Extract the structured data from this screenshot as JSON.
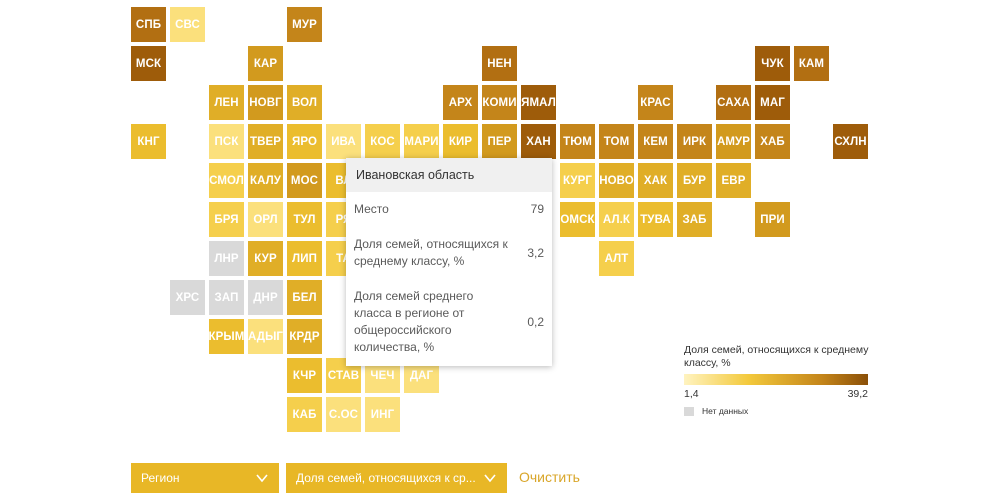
{
  "regions": [
    {
      "abbr": "СПБ",
      "bin": 7
    },
    {
      "abbr": "СВС",
      "bin": 1
    },
    {
      "abbr": "МУР",
      "bin": 6
    },
    {
      "abbr": "МСК",
      "bin": 8
    },
    {
      "abbr": "КАР",
      "bin": 5
    },
    {
      "abbr": "НЕН",
      "bin": 7
    },
    {
      "abbr": "ЧУК",
      "bin": 8
    },
    {
      "abbr": "КАМ",
      "bin": 7
    },
    {
      "abbr": "ЛЕН",
      "bin": 4
    },
    {
      "abbr": "НОВГ",
      "bin": 5
    },
    {
      "abbr": "ВОЛ",
      "bin": 4
    },
    {
      "abbr": "АРХ",
      "bin": 6
    },
    {
      "abbr": "КОМИ",
      "bin": 6
    },
    {
      "abbr": "ЯМАЛ",
      "bin": 8
    },
    {
      "abbr": "КРАС",
      "bin": 6
    },
    {
      "abbr": "САХА",
      "bin": 7
    },
    {
      "abbr": "МАГ",
      "bin": 8
    },
    {
      "abbr": "КНГ",
      "bin": 3
    },
    {
      "abbr": "ПСК",
      "bin": 1
    },
    {
      "abbr": "ТВЕР",
      "bin": 4
    },
    {
      "abbr": "ЯРО",
      "bin": 3
    },
    {
      "abbr": "ИВА",
      "bin": 1
    },
    {
      "abbr": "КОС",
      "bin": 2
    },
    {
      "abbr": "МАРИ",
      "bin": 2
    },
    {
      "abbr": "КИР",
      "bin": 3
    },
    {
      "abbr": "ПЕР",
      "bin": 5
    },
    {
      "abbr": "ХАН",
      "bin": 8
    },
    {
      "abbr": "ТЮМ",
      "bin": 6
    },
    {
      "abbr": "ТОМ",
      "bin": 6
    },
    {
      "abbr": "КЕМ",
      "bin": 6
    },
    {
      "abbr": "ИРК",
      "bin": 6
    },
    {
      "abbr": "АМУР",
      "bin": 5
    },
    {
      "abbr": "ХАБ",
      "bin": 6
    },
    {
      "abbr": "СХЛН",
      "bin": 8
    },
    {
      "abbr": "СМОЛ",
      "bin": 2
    },
    {
      "abbr": "КАЛУ",
      "bin": 4
    },
    {
      "abbr": "МОС",
      "bin": 5
    },
    {
      "abbr": "ВЛ",
      "bin": 3
    },
    {
      "abbr": "КУРГ",
      "bin": 2
    },
    {
      "abbr": "НОВО",
      "bin": 4
    },
    {
      "abbr": "ХАК",
      "bin": 4
    },
    {
      "abbr": "БУР",
      "bin": 4
    },
    {
      "abbr": "ЕВР",
      "bin": 4
    },
    {
      "abbr": "БРЯ",
      "bin": 2
    },
    {
      "abbr": "ОРЛ",
      "bin": 1
    },
    {
      "abbr": "ТУЛ",
      "bin": 3
    },
    {
      "abbr": "РЯ",
      "bin": 2
    },
    {
      "abbr": "ОМСК",
      "bin": 3
    },
    {
      "abbr": "АЛ.К",
      "bin": 2
    },
    {
      "abbr": "ТУВА",
      "bin": 3
    },
    {
      "abbr": "ЗАБ",
      "bin": 4
    },
    {
      "abbr": "ПРИ",
      "bin": 5
    },
    {
      "abbr": "ЛНР",
      "bin": 0
    },
    {
      "abbr": "КУР",
      "bin": 4
    },
    {
      "abbr": "ЛИП",
      "bin": 3
    },
    {
      "abbr": "ТА",
      "bin": 2
    },
    {
      "abbr": "АЛТ",
      "bin": 2
    },
    {
      "abbr": "ХРС",
      "bin": 0
    },
    {
      "abbr": "ЗАП",
      "bin": 0
    },
    {
      "abbr": "ДНР",
      "bin": 0
    },
    {
      "abbr": "БЕЛ",
      "bin": 4
    },
    {
      "abbr": "КРЫМ",
      "bin": 3
    },
    {
      "abbr": "АДЫГ",
      "bin": 1
    },
    {
      "abbr": "КРДР",
      "bin": 4
    },
    {
      "abbr": "КЧР",
      "bin": 3
    },
    {
      "abbr": "СТАВ",
      "bin": 2
    },
    {
      "abbr": "ЧЕЧ",
      "bin": 1
    },
    {
      "abbr": "ДАГ",
      "bin": 1
    },
    {
      "abbr": "КАБ",
      "bin": 2
    },
    {
      "abbr": "С.ОС",
      "bin": 1
    },
    {
      "abbr": "ИНГ",
      "bin": 1
    }
  ],
  "tooltip": {
    "region_name": "Ивановская область",
    "rows": [
      {
        "label": "Место",
        "value": "79"
      },
      {
        "label": "Доля семей, относящихся к среднему классу, %",
        "value": "3,2"
      },
      {
        "label": "Доля семей среднего класса в регионе от общероссийского количества, %",
        "value": "0,2"
      }
    ]
  },
  "legend": {
    "title": "Доля семей, относящихся к среднему классу, %",
    "min_label": "1,4",
    "max_label": "39,2",
    "no_data_label": "Нет данных",
    "colors": {
      "no_data": "#d9d9d9",
      "low": "#fff3c0",
      "high": "#8a4f08"
    }
  },
  "controls": {
    "region_dropdown": "Регион",
    "metric_dropdown": "Доля семей, относящихся к ср...",
    "clear_label": "Очистить"
  }
}
